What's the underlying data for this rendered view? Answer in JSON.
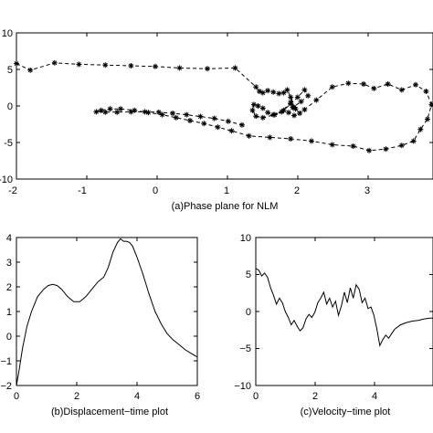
{
  "chart_data": [
    {
      "type": "scatter",
      "title": "",
      "caption": "(a)Phase plane for NLM",
      "xlabel": "",
      "ylabel": "",
      "xlim": [
        -2,
        4
      ],
      "ylim": [
        -10,
        10
      ],
      "xticks": [
        "-2",
        "-1",
        "0",
        "1",
        "2",
        "3"
      ],
      "yticks": [
        "10",
        "5",
        "0",
        "-5",
        "-10"
      ],
      "marker": "asterisk",
      "line_style": "dashed",
      "x": [
        -2.0,
        -1.8,
        -1.45,
        -1.1,
        -0.72,
        -0.35,
        0.0,
        0.35,
        0.75,
        1.15,
        1.45,
        1.5,
        1.55,
        1.62,
        1.7,
        1.78,
        1.85,
        1.9,
        1.95,
        2.0,
        2.08,
        2.02,
        1.95,
        1.82,
        1.7,
        1.62,
        1.55,
        1.48,
        1.42,
        1.4,
        1.45,
        1.55,
        1.72,
        1.85,
        1.95,
        2.05,
        2.15,
        2.2,
        2.1,
        1.98,
        1.92,
        2.0,
        2.15,
        2.32,
        2.55,
        2.78,
        3.0,
        3.15,
        3.35,
        3.55,
        3.75,
        3.9,
        3.98,
        3.92,
        3.82,
        3.72,
        3.55,
        3.32,
        3.08,
        2.85,
        2.55,
        2.25,
        1.95,
        1.65,
        1.35,
        1.1,
        0.9,
        0.7,
        0.5,
        0.3,
        0.1,
        -0.1,
        -0.3,
        -0.5,
        -0.65,
        -0.78,
        -0.85,
        -0.72,
        -0.55,
        -0.35,
        -0.15,
        0.05,
        0.25,
        0.45,
        0.65,
        0.85,
        1.05,
        1.25
      ],
      "y": [
        5.8,
        4.9,
        5.9,
        5.7,
        5.6,
        5.5,
        5.4,
        5.2,
        5.1,
        5.2,
        2.6,
        2.0,
        1.8,
        2.1,
        1.9,
        1.7,
        1.8,
        2.2,
        1.2,
        -0.2,
        -1.0,
        -0.4,
        0.5,
        -0.8,
        -1.2,
        -0.9,
        -0.3,
        0.0,
        0.2,
        -0.6,
        -1.4,
        -1.6,
        -1.2,
        -0.6,
        0.3,
        1.2,
        2.2,
        1.4,
        0.6,
        -0.2,
        -0.9,
        -1.3,
        -0.5,
        0.8,
        2.6,
        3.1,
        3.0,
        2.4,
        3.0,
        2.2,
        2.9,
        2.0,
        0.2,
        -1.8,
        -3.2,
        -4.8,
        -5.4,
        -5.9,
        -6.1,
        -5.5,
        -5.3,
        -4.8,
        -4.5,
        -4.3,
        -4.1,
        -3.4,
        -2.9,
        -2.4,
        -2.0,
        -1.6,
        -1.2,
        -0.9,
        -0.6,
        -0.4,
        -0.4,
        -0.6,
        -0.8,
        -0.85,
        -0.85,
        -0.8,
        -0.8,
        -0.85,
        -1.0,
        -1.2,
        -1.45,
        -1.7,
        -2.1,
        -2.6
      ]
    },
    {
      "type": "line",
      "title": "",
      "caption": "(b)Displacement−time plot",
      "xlabel": "",
      "ylabel": "",
      "xlim": [
        0,
        6
      ],
      "ylim": [
        -2,
        4
      ],
      "xticks": [
        "0",
        "2",
        "4",
        "6"
      ],
      "yticks": [
        "4",
        "3",
        "2",
        "1",
        "0",
        "−1",
        "−2"
      ],
      "x": [
        0.0,
        0.1,
        0.2,
        0.35,
        0.5,
        0.7,
        0.9,
        1.05,
        1.2,
        1.35,
        1.5,
        1.7,
        1.9,
        2.1,
        2.3,
        2.5,
        2.7,
        2.9,
        3.05,
        3.2,
        3.35,
        3.45,
        3.55,
        3.65,
        3.75,
        3.85,
        4.0,
        4.2,
        4.4,
        4.6,
        4.8,
        5.0,
        5.2,
        5.4,
        5.6,
        5.8,
        6.0
      ],
      "y": [
        -2.0,
        -1.3,
        -0.5,
        0.4,
        1.0,
        1.6,
        1.9,
        2.05,
        2.1,
        2.05,
        1.9,
        1.6,
        1.4,
        1.4,
        1.6,
        1.9,
        2.2,
        2.4,
        2.8,
        3.4,
        3.8,
        3.95,
        3.85,
        3.85,
        3.8,
        3.65,
        3.2,
        2.5,
        1.7,
        1.0,
        0.5,
        0.1,
        -0.15,
        -0.35,
        -0.55,
        -0.7,
        -0.85
      ]
    },
    {
      "type": "line",
      "title": "",
      "caption": "(c)Velocity−time plot",
      "xlabel": "",
      "ylabel": "",
      "xlim": [
        0,
        6
      ],
      "ylim": [
        -10,
        10
      ],
      "xticks": [
        "0",
        "2",
        "4"
      ],
      "yticks": [
        "10",
        "5",
        "0",
        "−5",
        "−10"
      ],
      "x": [
        0.0,
        0.1,
        0.2,
        0.3,
        0.4,
        0.5,
        0.6,
        0.7,
        0.8,
        0.9,
        1.0,
        1.1,
        1.2,
        1.3,
        1.4,
        1.5,
        1.6,
        1.7,
        1.8,
        1.9,
        2.0,
        2.1,
        2.2,
        2.3,
        2.4,
        2.5,
        2.6,
        2.7,
        2.8,
        2.9,
        3.0,
        3.1,
        3.2,
        3.3,
        3.4,
        3.5,
        3.6,
        3.7,
        3.8,
        3.9,
        4.0,
        4.1,
        4.2,
        4.3,
        4.4,
        4.5,
        4.7,
        4.9,
        5.1,
        5.3,
        5.5,
        5.7,
        5.9,
        6.0
      ],
      "y": [
        5.8,
        5.6,
        4.8,
        5.2,
        4.6,
        3.2,
        2.2,
        1.0,
        1.8,
        1.2,
        0.0,
        -0.8,
        -1.8,
        -1.2,
        -2.0,
        -2.6,
        -2.2,
        -1.0,
        -0.4,
        -0.8,
        -0.1,
        1.2,
        1.8,
        2.6,
        1.0,
        1.8,
        0.6,
        1.4,
        -0.5,
        0.8,
        2.6,
        1.2,
        3.2,
        1.8,
        3.6,
        3.0,
        1.2,
        1.8,
        0.4,
        0.6,
        -0.5,
        -2.4,
        -4.6,
        -3.8,
        -3.2,
        -3.6,
        -2.4,
        -1.8,
        -1.5,
        -1.3,
        -1.2,
        -1.0,
        -0.9,
        -0.9
      ]
    }
  ]
}
